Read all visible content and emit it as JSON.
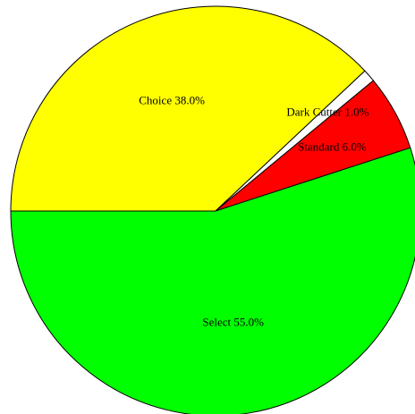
{
  "chart_data": {
    "type": "pie",
    "title": "",
    "slices": [
      {
        "label": "Choice",
        "value": 38.0,
        "display": "Choice 38.0%",
        "color": "#ffff00"
      },
      {
        "label": "Dark Cutter",
        "value": 1.0,
        "display": "Dark Cutter 1.0%",
        "color": "#ffffff"
      },
      {
        "label": "Standard",
        "value": 6.0,
        "display": "Standard 6.0%",
        "color": "#ff0000"
      },
      {
        "label": "Select",
        "value": 55.0,
        "display": "Select 55.0%",
        "color": "#00ff00"
      }
    ]
  }
}
